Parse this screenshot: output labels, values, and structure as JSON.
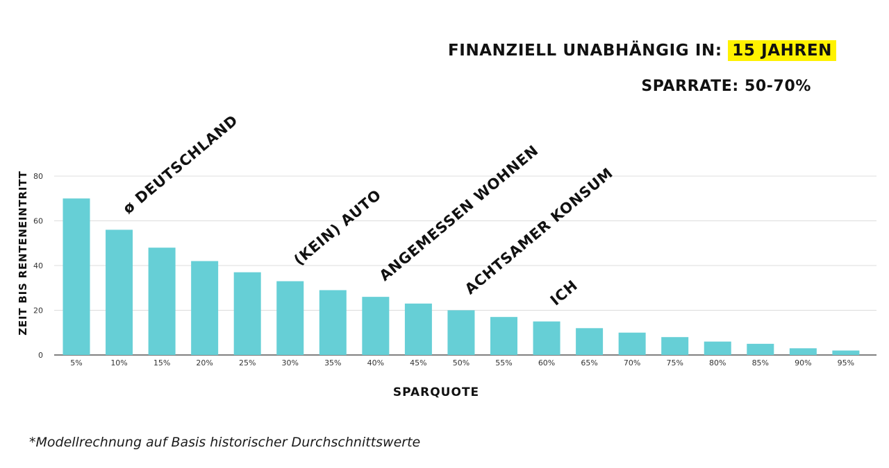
{
  "header": {
    "headline_prefix": "FINANZIELL UNABHÄNGIG IN:",
    "headline_highlight": "15 JAHREN",
    "subline": "SPARRATE: 50-70%",
    "highlight_color": "#fff200"
  },
  "chart_data": {
    "type": "bar",
    "xlabel": "SPARQUOTE",
    "ylabel": "ZEIT BIS RENTENEINTRITT",
    "ylim": [
      0,
      80
    ],
    "yticks": [
      0,
      20,
      40,
      60,
      80
    ],
    "grid": true,
    "bar_color": "#66cfd6",
    "categories": [
      "5%",
      "10%",
      "15%",
      "20%",
      "25%",
      "30%",
      "35%",
      "40%",
      "45%",
      "50%",
      "55%",
      "60%",
      "65%",
      "70%",
      "75%",
      "80%",
      "85%",
      "90%",
      "95%"
    ],
    "values": [
      70,
      56,
      48,
      42,
      37,
      33,
      29,
      26,
      23,
      20,
      17,
      15,
      12,
      10,
      8,
      6,
      5,
      3,
      2
    ],
    "annotations": [
      {
        "text": "ø DEUTSCHLAND",
        "category": "10%"
      },
      {
        "text": "(KEIN) AUTO",
        "category": "30%"
      },
      {
        "text": "ANGEMESSEN WOHNEN",
        "category": "40%"
      },
      {
        "text": "ACHTSAMER KONSUM",
        "category": "50%"
      },
      {
        "text": "ICH",
        "category": "60%"
      }
    ]
  },
  "footnote": "*Modellrechnung auf Basis historischer Durchschnittswerte"
}
